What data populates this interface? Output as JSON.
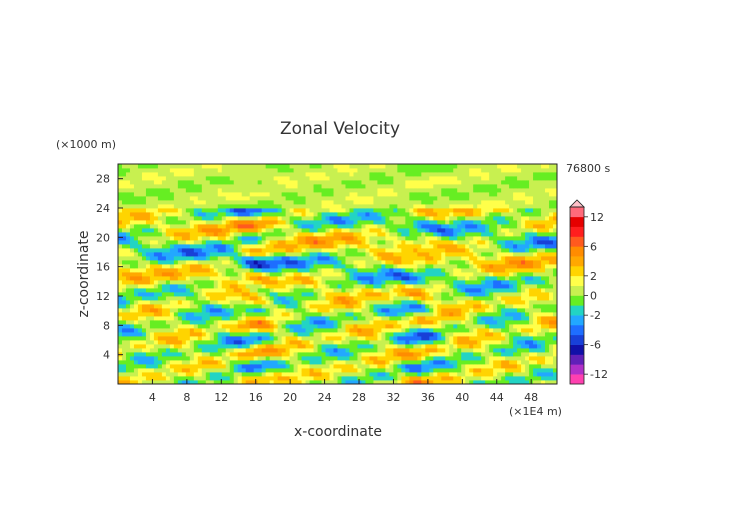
{
  "chart_data": {
    "type": "heatmap",
    "title": "Zonal Velocity",
    "xlabel": "x-coordinate",
    "ylabel": "z-coordinate",
    "x_unit": "(×1E4 m)",
    "y_unit": "(×1000 m)",
    "time_label": "76800 s",
    "xlim": [
      0,
      51
    ],
    "ylim": [
      0,
      30
    ],
    "x_ticks": [
      4,
      8,
      12,
      16,
      20,
      24,
      28,
      32,
      36,
      40,
      44,
      48
    ],
    "y_ticks": [
      4,
      8,
      12,
      16,
      20,
      24,
      28
    ],
    "colorbar": {
      "levels": [
        -14,
        -12,
        -10,
        -8,
        -6,
        -4,
        -3,
        -2,
        -1,
        0,
        1,
        2,
        3,
        4,
        6,
        8,
        10,
        12,
        14
      ],
      "tick_labels": [
        "12",
        "6",
        "2",
        "0",
        "-2",
        "-6",
        "-12"
      ],
      "tick_values": [
        12,
        6,
        2,
        0,
        -2,
        -6,
        -12
      ]
    }
  },
  "colors": {
    "pos": [
      "#ffd400",
      "#ffa800",
      "#ff8c00",
      "#ff5a1e",
      "#ff1e1e",
      "#e60000",
      "#ff6a7a",
      "#ff9aaa",
      "#ffc0c8"
    ],
    "zero": [
      "#c8f050",
      "#ffff4a"
    ],
    "neg": [
      "#66ee22",
      "#22d4c4",
      "#22a8ff",
      "#1e6eff",
      "#1840d8",
      "#1010a8",
      "#6020b8",
      "#b030c8",
      "#ff40b0"
    ]
  }
}
